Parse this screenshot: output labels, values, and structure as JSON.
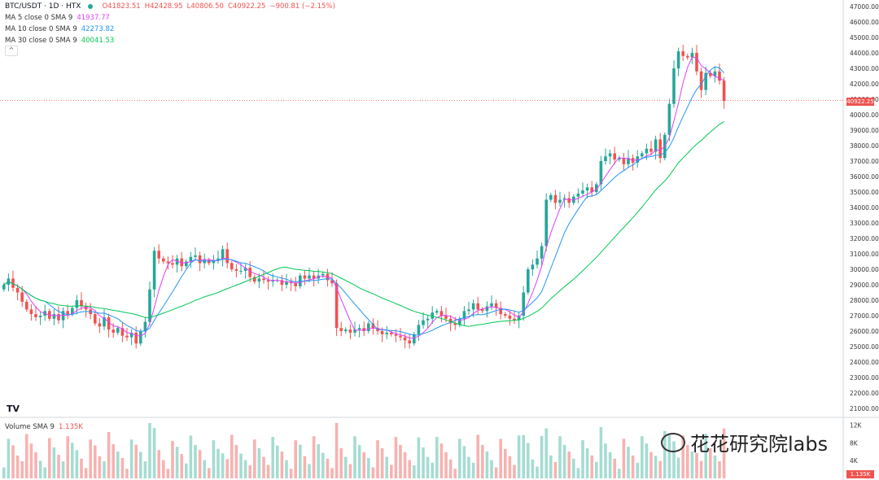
{
  "symbol_line": {
    "pair": "BTC/USDT · 1D · HTX",
    "open": "O41823.51",
    "high": "H42428.95",
    "low": "L40806.50",
    "close": "C40922.25",
    "change": "−900.81 (−2.15%)"
  },
  "indicators": [
    {
      "label": "MA 5 close 0 SMA 9",
      "value": "41937.77",
      "color": "#e040fb"
    },
    {
      "label": "MA 10 close 0 SMA 9",
      "value": "42273.82",
      "color": "#2196f3"
    },
    {
      "label": "MA 30 close 0 SMA 9",
      "value": "40041.53",
      "color": "#00c853"
    }
  ],
  "collapse_icon": "^",
  "volume_label": "Volume SMA 9",
  "volume_value": "1.135K",
  "price_axis": [
    "47000.00",
    "46000.00",
    "45000.00",
    "44000.00",
    "43000.00",
    "42000.00",
    "41000.00",
    "40000.00",
    "39000.00",
    "38000.00",
    "37000.00",
    "36000.00",
    "35000.00",
    "34000.00",
    "33000.00",
    "32000.00",
    "31000.00",
    "30000.00",
    "29000.00",
    "28000.00",
    "27000.00",
    "26000.00",
    "25000.00",
    "24000.00",
    "23000.00",
    "22000.00",
    "21000.00"
  ],
  "current_price": "40922.25",
  "volume_axis": [
    "12K",
    "8K",
    "4K"
  ],
  "volume_badge": "1.135K",
  "logo": "TV",
  "watermark": "花花研究院labs",
  "colors": {
    "up": "#26a69a",
    "down": "#ef5350",
    "up_vol": "#a5dcd2",
    "down_vol": "#f7b2b0"
  },
  "chart_data": {
    "type": "candlestick",
    "title": "BTC/USDT · 1D · HTX",
    "ylim": [
      20500,
      47500
    ],
    "candles_close": [
      29000,
      29400,
      28800,
      28500,
      27900,
      27400,
      27100,
      26900,
      27000,
      27300,
      26800,
      27100,
      26700,
      27300,
      27100,
      27500,
      28000,
      27600,
      27400,
      27100,
      26500,
      26300,
      26900,
      26100,
      25900,
      26200,
      25700,
      25600,
      25900,
      25200,
      26000,
      26600,
      28700,
      31200,
      30700,
      30500,
      30400,
      30300,
      30700,
      30200,
      30500,
      30800,
      30900,
      30400,
      30600,
      30400,
      30600,
      30700,
      31300,
      30400,
      30000,
      29900,
      29900,
      30100,
      29500,
      29200,
      29400,
      29300,
      29200,
      29300,
      29300,
      29000,
      29200,
      29100,
      28900,
      29600,
      29400,
      29600,
      29400,
      29600,
      29700,
      29300,
      29100,
      26200,
      26000,
      26100,
      25900,
      26100,
      26200,
      26000,
      26500,
      26200,
      26000,
      25800,
      25900,
      25800,
      25700,
      25600,
      25400,
      25200,
      25800,
      26400,
      26700,
      26800,
      27200,
      27300,
      27000,
      26800,
      26500,
      26400,
      26800,
      27300,
      27400,
      27800,
      27400,
      27300,
      27600,
      27800,
      27500,
      27100,
      27000,
      26800,
      26700,
      27000,
      28500,
      30000,
      30300,
      30700,
      31500,
      34500,
      34800,
      34300,
      34500,
      34600,
      34300,
      34700,
      34900,
      35100,
      35300,
      35000,
      35500,
      37000,
      37300,
      37500,
      37100,
      37200,
      36800,
      37200,
      36900,
      37300,
      37500,
      37800,
      37600,
      38400,
      37200,
      38700,
      40700,
      43000,
      44100,
      43800,
      43700,
      44000,
      42800,
      41600,
      42700,
      42500,
      42800,
      42200,
      40900
    ],
    "volume": {
      "max": 12500,
      "tick_values": [
        12000,
        8000,
        4000
      ],
      "last": 1135
    }
  }
}
